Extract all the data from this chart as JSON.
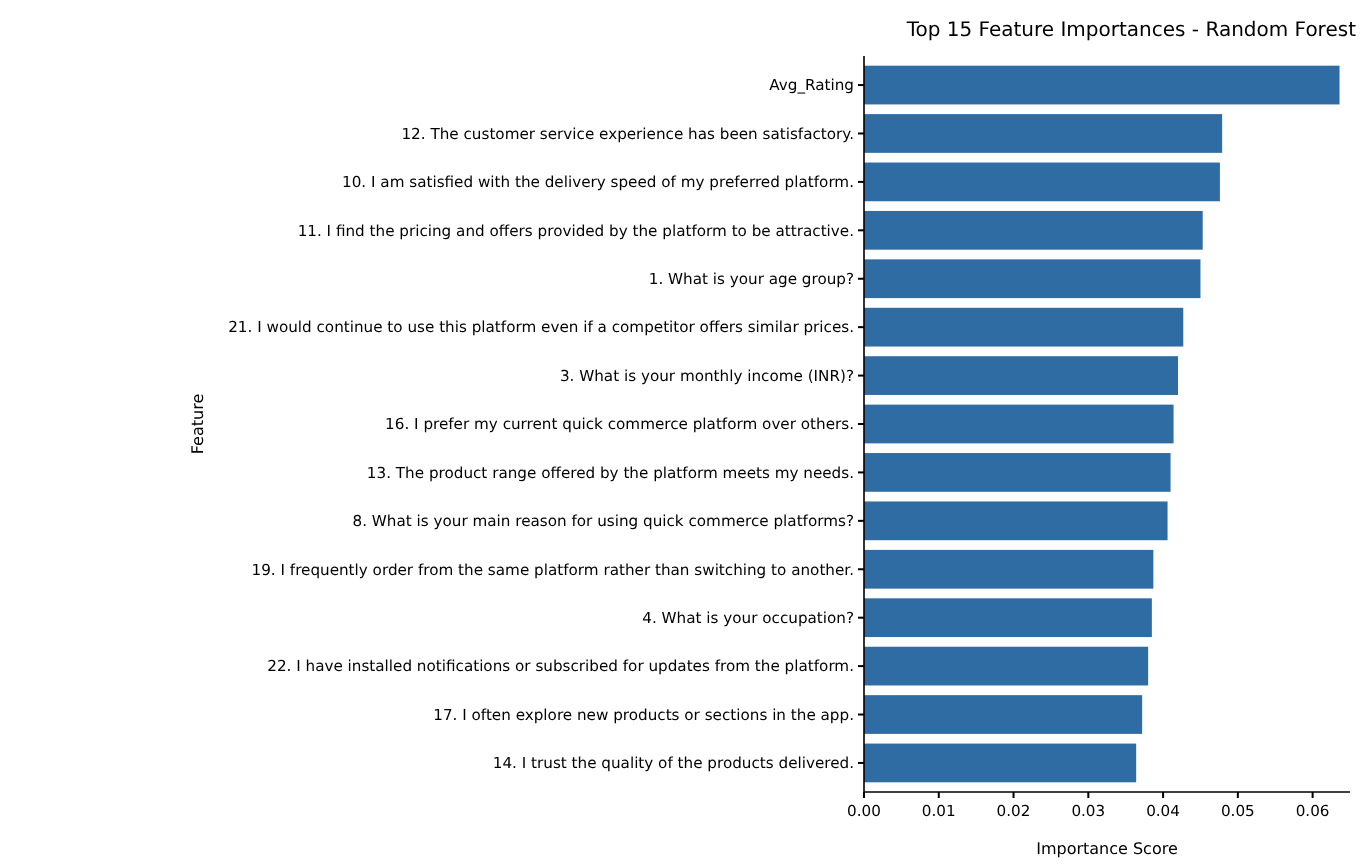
{
  "chart_data": {
    "type": "bar",
    "orientation": "horizontal",
    "title": "Top 15 Feature Importances - Random Forest",
    "xlabel": "Importance Score",
    "ylabel": "Feature",
    "categories": [
      "Avg_Rating",
      "12. The customer service experience has been satisfactory.",
      "10. I am satisfied with the delivery speed of my preferred platform.",
      "11. I find the pricing and offers provided by the platform to be attractive.",
      "1. What is your age group?",
      "21. I would continue to use this platform even if a competitor offers similar prices.",
      "3. What is your monthly income (INR)?",
      "16. I prefer my current quick commerce platform over others.",
      "13. The product range offered by the platform meets my needs.",
      "8. What is your main reason for using quick commerce platforms?",
      "19. I frequently order from the same platform rather than switching to another.",
      "4. What is your occupation?",
      "22. I have installed notifications or subscribed for updates from the platform.",
      "17. I often explore new products or sections in the app.",
      "14. I trust the quality of the products delivered."
    ],
    "values": [
      0.0636,
      0.0479,
      0.0476,
      0.0453,
      0.045,
      0.0427,
      0.042,
      0.0414,
      0.041,
      0.0406,
      0.0387,
      0.0385,
      0.038,
      0.0372,
      0.0364
    ],
    "color": "#2f6ca3",
    "xlim": [
      0,
      0.065
    ],
    "xticks": [
      {
        "value": 0,
        "label": "0.00"
      },
      {
        "value": 0.01,
        "label": "0.01"
      },
      {
        "value": 0.02,
        "label": "0.02"
      },
      {
        "value": 0.03,
        "label": "0.03"
      },
      {
        "value": 0.04,
        "label": "0.04"
      },
      {
        "value": 0.05,
        "label": "0.05"
      },
      {
        "value": 0.06,
        "label": "0.06"
      }
    ]
  }
}
